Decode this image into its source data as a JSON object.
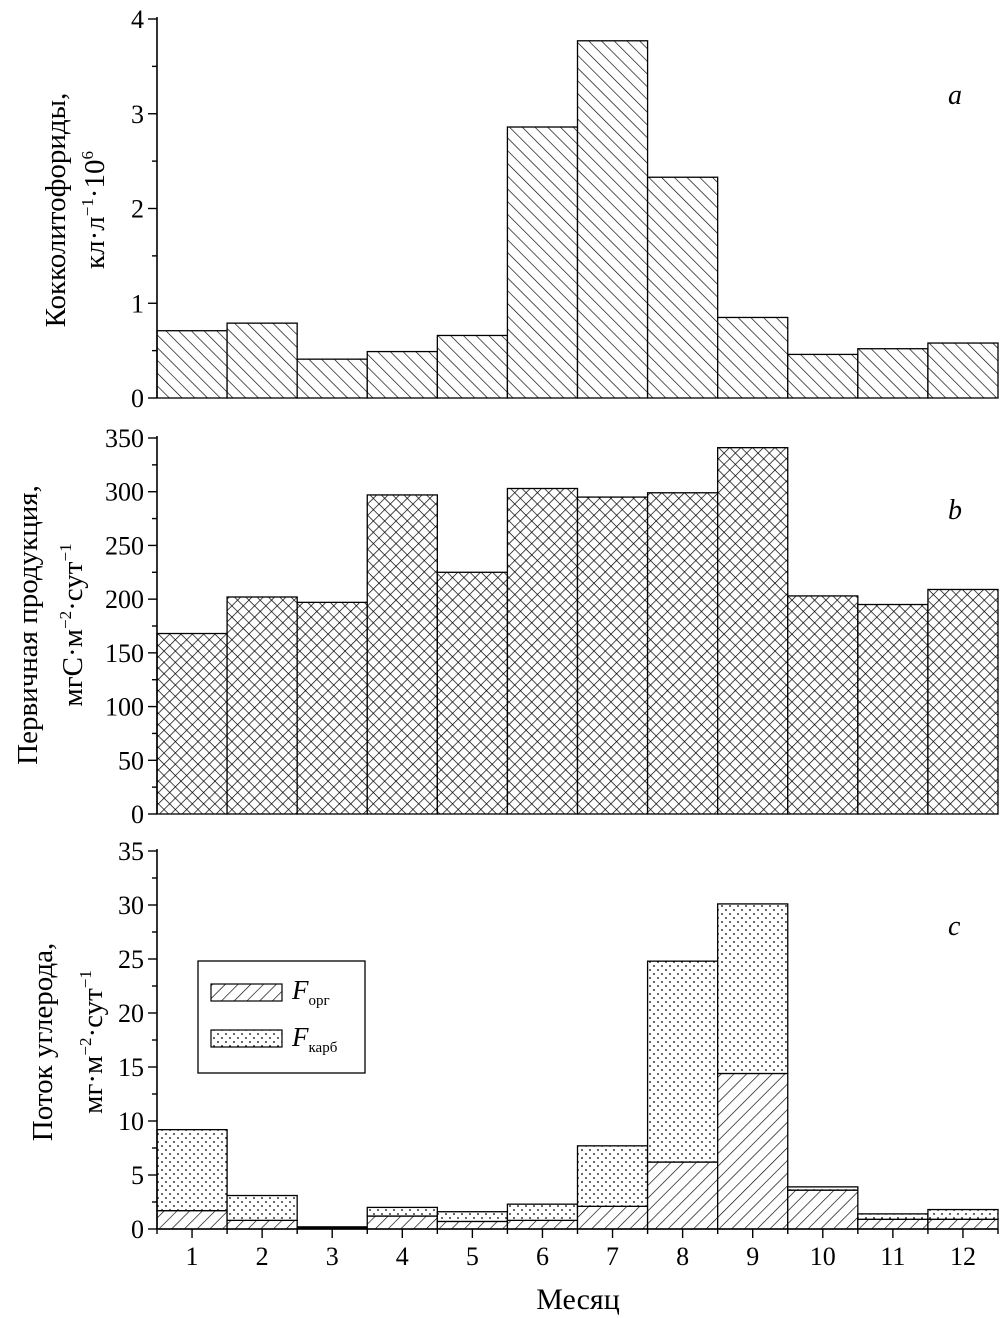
{
  "chart_data": [
    {
      "type": "bar",
      "panel_letter": "a",
      "ylabel_line1": "Кокколитофориды,",
      "ylabel_line2": {
        "a": "кл",
        "b": "·",
        "c": "л",
        "d": "−1",
        "e": "·",
        "f": "10",
        "g": "6"
      },
      "categories": [
        "1",
        "2",
        "3",
        "4",
        "5",
        "6",
        "7",
        "8",
        "9",
        "10",
        "11",
        "12"
      ],
      "values": [
        0.71,
        0.79,
        0.41,
        0.49,
        0.66,
        2.86,
        3.77,
        2.33,
        0.85,
        0.46,
        0.52,
        0.58
      ],
      "ylim": [
        0,
        4
      ],
      "yticks": [
        "0",
        "1",
        "2",
        "3",
        "4"
      ],
      "pattern": "hatch-back"
    },
    {
      "type": "bar",
      "panel_letter": "b",
      "ylabel_line1": "Первичная продукция,",
      "ylabel_line2": {
        "a": "мгС",
        "b": "·",
        "c": "м",
        "d": "−2",
        "e": "·",
        "f": "сут",
        "g": "−1"
      },
      "categories": [
        "1",
        "2",
        "3",
        "4",
        "5",
        "6",
        "7",
        "8",
        "9",
        "10",
        "11",
        "12"
      ],
      "values": [
        168,
        202,
        197,
        297,
        225,
        303,
        295,
        299,
        341,
        203,
        195,
        209
      ],
      "ylim": [
        0,
        350
      ],
      "yticks": [
        "0",
        "50",
        "100",
        "150",
        "200",
        "250",
        "300",
        "350"
      ],
      "pattern": "crosshatch"
    },
    {
      "type": "bar",
      "stacked": true,
      "panel_letter": "c",
      "ylabel_line1": "Поток углерода,",
      "ylabel_line2": {
        "a": "мг",
        "b": "·",
        "c": "м",
        "d": "−2",
        "e": "·",
        "f": "сут",
        "g": "−1"
      },
      "categories": [
        "1",
        "2",
        "3",
        "4",
        "5",
        "6",
        "7",
        "8",
        "9",
        "10",
        "11",
        "12"
      ],
      "series": [
        {
          "name_main": "F",
          "name_sub": "орг",
          "pattern": "hatch-fwd",
          "values": [
            1.7,
            0.8,
            0.1,
            1.2,
            0.7,
            0.8,
            2.1,
            6.2,
            14.4,
            3.6,
            0.9,
            0.9
          ]
        },
        {
          "name_main": "F",
          "name_sub": "карб",
          "pattern": "dots",
          "values": [
            7.5,
            2.3,
            0.1,
            0.8,
            0.9,
            1.5,
            5.6,
            18.6,
            15.7,
            0.3,
            0.5,
            0.9
          ]
        }
      ],
      "ylim": [
        0,
        35
      ],
      "yticks": [
        "0",
        "5",
        "10",
        "15",
        "20",
        "25",
        "30",
        "35"
      ],
      "legend": "upper-left"
    }
  ],
  "xlabel": "Месяц"
}
